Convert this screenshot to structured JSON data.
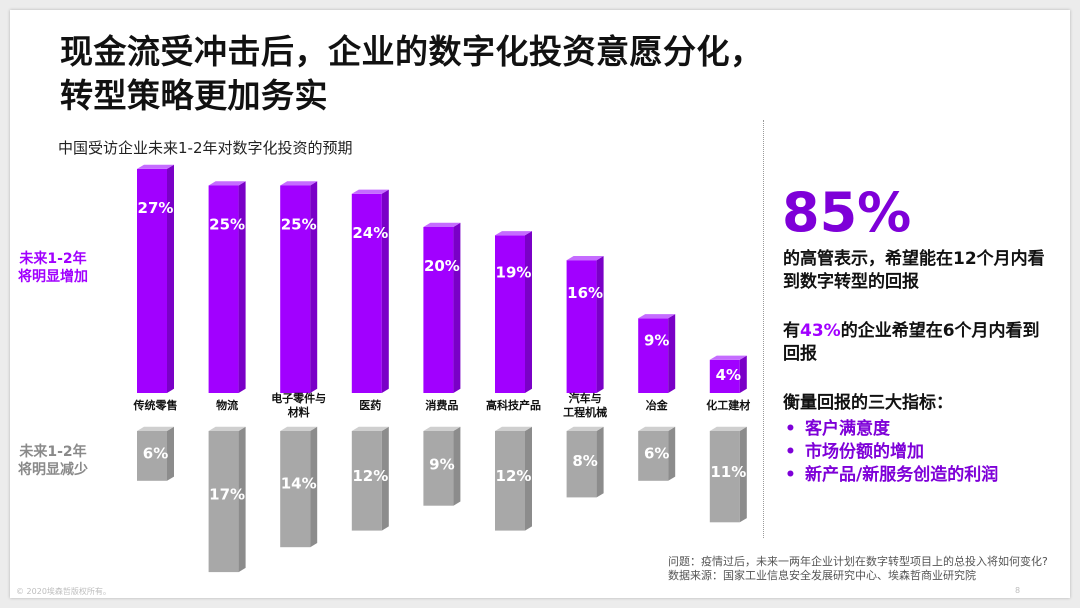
{
  "title": {
    "line1": "现金流受冲击后，企业的数字化投资意愿分化，",
    "line2": "转型策略更加务实"
  },
  "chart_data": {
    "type": "bar",
    "title": "中国受访企业未来1-2年对数字化投资的预期",
    "categories": [
      "传统零售",
      "物流",
      "电子零件与材料",
      "医药",
      "消费品",
      "高科技产品",
      "汽车与工程机械",
      "冶金",
      "化工建材"
    ],
    "category_lines": [
      [
        "传统零售"
      ],
      [
        "物流"
      ],
      [
        "电子零件与",
        "材料"
      ],
      [
        "医药"
      ],
      [
        "消费品"
      ],
      [
        "高科技产品"
      ],
      [
        "汽车与",
        "工程机械"
      ],
      [
        "冶金"
      ],
      [
        "化工建材"
      ]
    ],
    "series": [
      {
        "name": "未来1-2年将明显增加",
        "values": [
          27,
          25,
          25,
          24,
          20,
          19,
          16,
          9,
          4
        ],
        "color": "#a100ff"
      },
      {
        "name": "未来1-2年将明显减少",
        "values": [
          6,
          17,
          14,
          12,
          9,
          12,
          8,
          6,
          11
        ],
        "color": "#a8a8a8"
      }
    ],
    "value_suffix": "%"
  },
  "legend": {
    "increase": [
      "未来1-2年",
      "将明显增加"
    ],
    "decrease": [
      "未来1-2年",
      "将明显减少"
    ]
  },
  "panel": {
    "big_number": "85%",
    "line1": "的高管表示，希望能在12个月内看到数字转型的回报",
    "line2_prefix": "有",
    "line2_highlight": "43%",
    "line2_suffix": "的企业希望在6个月内看到回报",
    "metrics_heading": "衡量回报的三大指标：",
    "metrics": [
      "客户满意度",
      "市场份额的增加",
      "新产品/新服务创造的利润"
    ]
  },
  "footnote": {
    "question": "问题：疫情过后，未来一两年企业计划在数字转型项目上的总投入将如何变化?",
    "source": "数据来源：国家工业信息安全发展研究中心、埃森哲商业研究院"
  },
  "footer": {
    "copyright": "© 2020埃森哲版权所有。",
    "page": "8"
  },
  "colors": {
    "accent": "#a100ff",
    "accent_dark": "#7e00d8",
    "gray": "#a8a8a8"
  }
}
